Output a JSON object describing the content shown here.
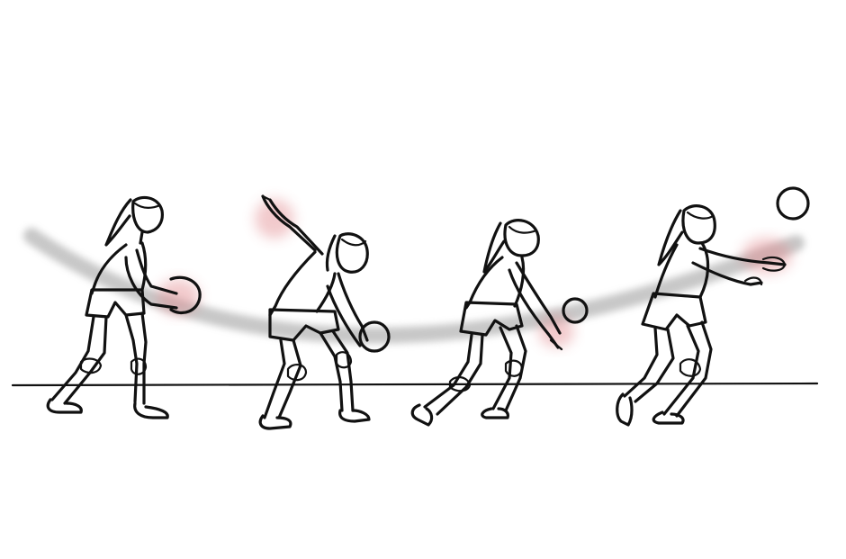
{
  "illustration": {
    "style": "sketch",
    "colors": {
      "ink": "#111111",
      "motion_trail": "#9a9a9a",
      "highlight": "#e28a8f",
      "background": "#ffffff"
    },
    "frames": [
      {
        "pose": "ready-hold-ball"
      },
      {
        "pose": "arm-swing-back"
      },
      {
        "pose": "swing-forward-contact"
      },
      {
        "pose": "follow-through"
      }
    ]
  }
}
